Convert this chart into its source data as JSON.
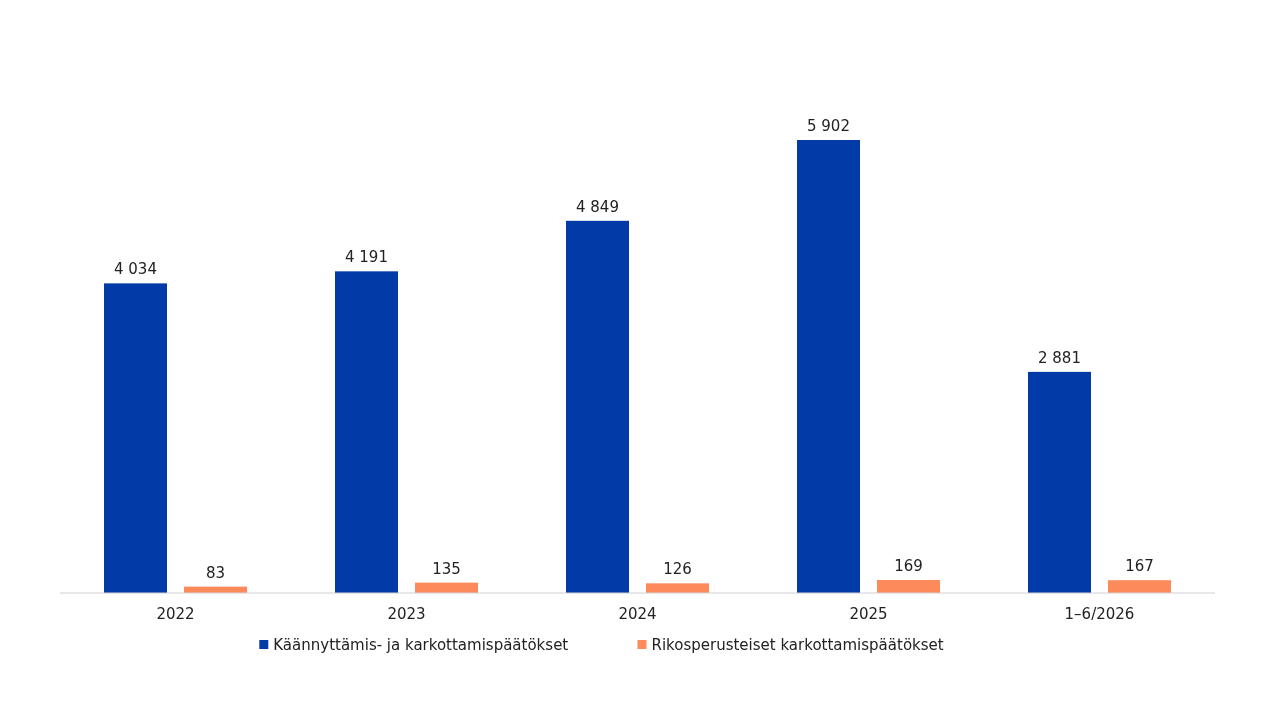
{
  "chart_data": {
    "type": "bar",
    "categories": [
      "2022",
      "2023",
      "2024",
      "2025",
      "1–6/2026"
    ],
    "series": [
      {
        "name": "Käännyttämis- ja karkottamispäätökset",
        "color": "#023ba8",
        "values": [
          4034,
          4191,
          4849,
          5902,
          2881
        ],
        "value_labels": [
          "4 034",
          "4 191",
          "4 849",
          "5 902",
          "2 881"
        ]
      },
      {
        "name": "Rikosperusteiset karkottamispäätökset",
        "color": "#fd8a5a",
        "values": [
          83,
          135,
          126,
          169,
          167
        ],
        "value_labels": [
          "83",
          "135",
          "126",
          "169",
          "167"
        ]
      }
    ],
    "legend": "bottom"
  }
}
